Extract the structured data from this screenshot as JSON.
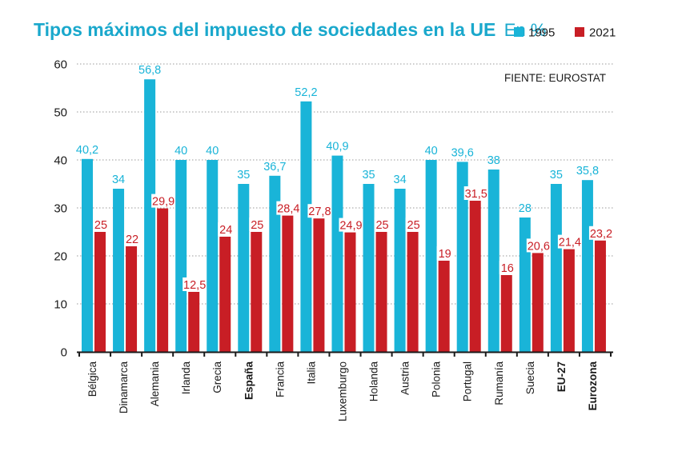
{
  "colors": {
    "title": "#1aa8cc",
    "series_a": "#19b4d8",
    "series_b": "#c81e25",
    "axis": "#1a1a1a",
    "grid": "#9a9a9a"
  },
  "chart_data": {
    "type": "bar",
    "title": "Tipos máximos del impuesto de sociedades en la UE",
    "unit": "En %",
    "source": "FIENTE: EUROSTAT",
    "ylim": [
      0,
      60
    ],
    "yticks": [
      0,
      10,
      20,
      30,
      40,
      50,
      60
    ],
    "grid": true,
    "legend_position": "top-right",
    "categories": [
      "Bélgica",
      "Dinamarca",
      "Alemania",
      "Irlanda",
      "Grecia",
      "España",
      "Francia",
      "Italia",
      "Luxemburgo",
      "Holanda",
      "Austria",
      "Polonia",
      "Portugal",
      "Rumanía",
      "Suecia",
      "EU-27",
      "Eurozona"
    ],
    "bold_categories": [
      "España",
      "EU-27",
      "Eurozona"
    ],
    "series": [
      {
        "name": "1995",
        "values": [
          40.2,
          34,
          56.8,
          40,
          40,
          35,
          36.7,
          52.2,
          40.9,
          35,
          34,
          40,
          39.6,
          38,
          28,
          35,
          35.8
        ],
        "labels": [
          "40,2",
          "34",
          "56,8",
          "40",
          "40",
          "35",
          "36,7",
          "52,2",
          "40,9",
          "35",
          "34",
          "40",
          "39,6",
          "38",
          "28",
          "35",
          "35,8"
        ]
      },
      {
        "name": "2021",
        "values": [
          25,
          22,
          29.9,
          12.5,
          24,
          25,
          28.4,
          27.8,
          24.9,
          25,
          25,
          19,
          31.5,
          16,
          20.6,
          21.4,
          23.2
        ],
        "labels": [
          "25",
          "22",
          "29,9",
          "12,5",
          "24",
          "25",
          "28,4",
          "27,8",
          "24,9",
          "25",
          "25",
          "19",
          "31,5",
          "16",
          "20,6",
          "21,4",
          "23,2"
        ]
      }
    ]
  }
}
